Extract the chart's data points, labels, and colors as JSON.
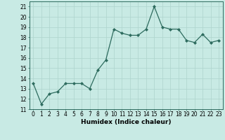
{
  "x": [
    0,
    1,
    2,
    3,
    4,
    5,
    6,
    7,
    8,
    9,
    10,
    11,
    12,
    13,
    14,
    15,
    16,
    17,
    18,
    19,
    20,
    21,
    22,
    23
  ],
  "y": [
    13.5,
    11.5,
    12.5,
    12.7,
    13.5,
    13.5,
    13.5,
    13.0,
    14.8,
    15.8,
    18.8,
    18.4,
    18.2,
    18.2,
    18.8,
    21.0,
    19.0,
    18.8,
    18.8,
    17.7,
    17.5,
    18.3,
    17.5,
    17.7
  ],
  "title": "",
  "xlabel": "Humidex (Indice chaleur)",
  "ylabel": "",
  "ylim": [
    11,
    21.5
  ],
  "xlim": [
    -0.5,
    23.5
  ],
  "yticks": [
    11,
    12,
    13,
    14,
    15,
    16,
    17,
    18,
    19,
    20,
    21
  ],
  "xticks": [
    0,
    1,
    2,
    3,
    4,
    5,
    6,
    7,
    8,
    9,
    10,
    11,
    12,
    13,
    14,
    15,
    16,
    17,
    18,
    19,
    20,
    21,
    22,
    23
  ],
  "line_color": "#2d6b5e",
  "marker_color": "#2d6b5e",
  "bg_color": "#c8eae4",
  "grid_color": "#aed4cc",
  "label_fontsize": 6.5,
  "tick_fontsize": 5.5
}
